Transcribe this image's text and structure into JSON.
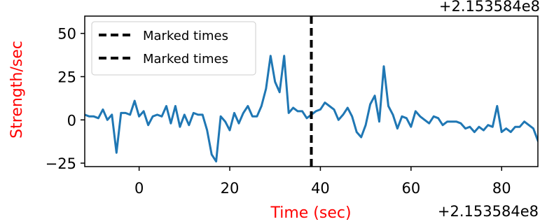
{
  "chart_data": {
    "type": "line",
    "xlabel": "Time (sec)",
    "ylabel": "Strength/sec",
    "label_color": "#ff0000",
    "series_color": "#1f77b4",
    "marker_color": "#000000",
    "x_offset_text": "+2.153584e8",
    "top_offset_text": "+2.153584e8",
    "xlim": [
      -12,
      88
    ],
    "ylim": [
      -27,
      60
    ],
    "x_ticks": [
      0,
      20,
      40,
      60,
      80
    ],
    "x_tick_labels": [
      "0",
      "20",
      "40",
      "60",
      "80"
    ],
    "y_ticks": [
      50,
      25,
      0,
      -25
    ],
    "y_tick_labels": [
      "50",
      "25",
      "0",
      "−25"
    ],
    "legend": {
      "position": "top-left",
      "entries": [
        "Marked times",
        "Marked times"
      ]
    },
    "marked_times": [
      38
    ],
    "x": [
      -12.0,
      -11.0,
      -10.0,
      -9.0,
      -8.0,
      -7.0,
      -6.0,
      -5.0,
      -4.0,
      -3.0,
      -2.0,
      -1.0,
      0.0,
      1.0,
      2.0,
      3.0,
      4.0,
      5.0,
      6.0,
      7.0,
      8.0,
      9.0,
      10.0,
      11.0,
      12.0,
      13.0,
      14.0,
      15.0,
      16.0,
      17.0,
      18.0,
      19.0,
      20.0,
      21.0,
      22.0,
      23.0,
      24.0,
      25.0,
      26.0,
      27.0,
      28.0,
      29.0,
      30.0,
      31.0,
      32.0,
      33.0,
      34.0,
      35.0,
      36.0,
      37.0,
      38.0,
      39.0,
      40.0,
      41.0,
      42.0,
      43.0,
      44.0,
      45.0,
      46.0,
      47.0,
      48.0,
      49.0,
      50.0,
      51.0,
      52.0,
      53.0,
      54.0,
      55.0,
      56.0,
      57.0,
      58.0,
      59.0,
      60.0,
      61.0,
      62.0,
      63.0,
      64.0,
      65.0,
      66.0,
      67.0,
      68.0,
      69.0,
      70.0,
      71.0,
      72.0,
      73.0,
      74.0,
      75.0,
      76.0,
      77.0,
      78.0,
      79.0,
      80.0,
      81.0,
      82.0,
      83.0,
      84.0,
      85.0,
      86.0,
      87.0,
      88.0
    ],
    "values": [
      3,
      2,
      2,
      1,
      6,
      0,
      3,
      -19,
      4,
      4,
      3,
      11,
      2,
      5,
      -3,
      2,
      3,
      2,
      8,
      -2,
      8,
      -4,
      3,
      -3,
      4,
      3,
      3,
      -6,
      -20,
      -24,
      2,
      -1,
      -6,
      4,
      -2,
      4,
      8,
      2,
      2,
      8,
      18,
      37,
      22,
      16,
      37,
      4,
      7,
      5,
      5,
      1,
      3,
      5,
      6,
      10,
      8,
      6,
      0,
      3,
      7,
      2,
      -7,
      -10,
      -3,
      9,
      14,
      -1,
      31,
      8,
      3,
      -5,
      2,
      1,
      -4,
      5,
      2,
      0,
      -2,
      2,
      1,
      -3,
      -1,
      -1,
      -1,
      -2,
      -5,
      -4,
      -7,
      -4,
      -6,
      -3,
      -4,
      8,
      -7,
      -5,
      -7,
      -4,
      -4,
      -1,
      -3,
      -5,
      -12
    ]
  }
}
